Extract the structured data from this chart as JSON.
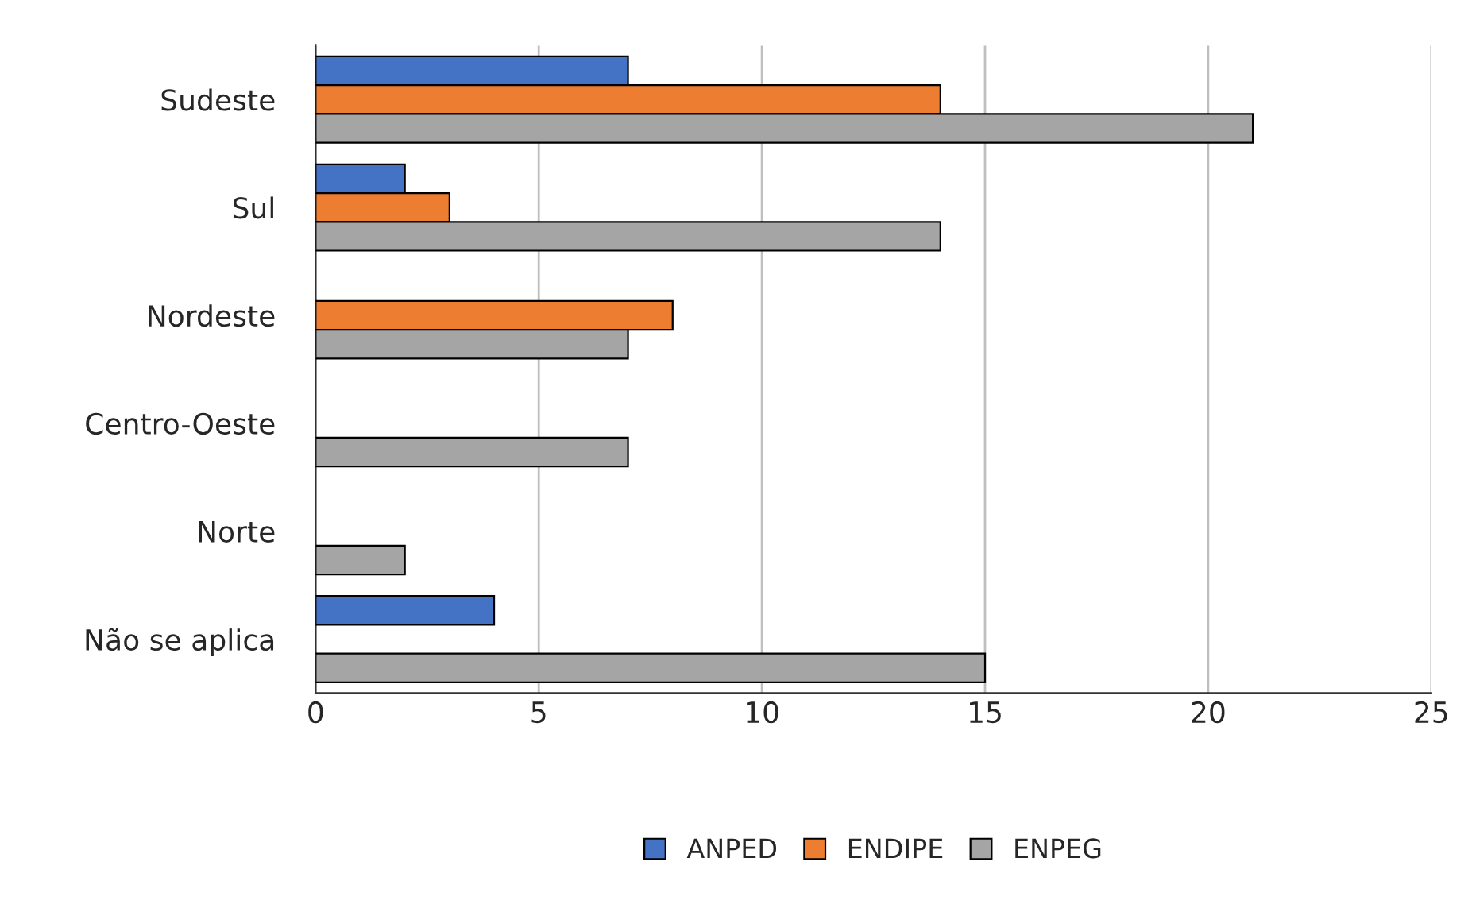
{
  "chart_data": {
    "type": "bar",
    "orientation": "horizontal",
    "categories": [
      "Sudeste",
      "Sul",
      "Nordeste",
      "Centro-Oeste",
      "Norte",
      "Não se aplica"
    ],
    "series": [
      {
        "name": "ANPED",
        "color": "#4472c4",
        "values": [
          7,
          2,
          null,
          null,
          null,
          4
        ]
      },
      {
        "name": "ENDIPE",
        "color": "#ed7d31",
        "values": [
          14,
          3,
          8,
          null,
          null,
          null
        ]
      },
      {
        "name": "ENPEG",
        "color": "#a5a5a5",
        "values": [
          21,
          14,
          7,
          7,
          2,
          15
        ]
      }
    ],
    "xlim": [
      0,
      25
    ],
    "xticks": [
      0,
      5,
      10,
      15,
      20,
      25
    ],
    "grid": "x",
    "legend": "bottom"
  }
}
